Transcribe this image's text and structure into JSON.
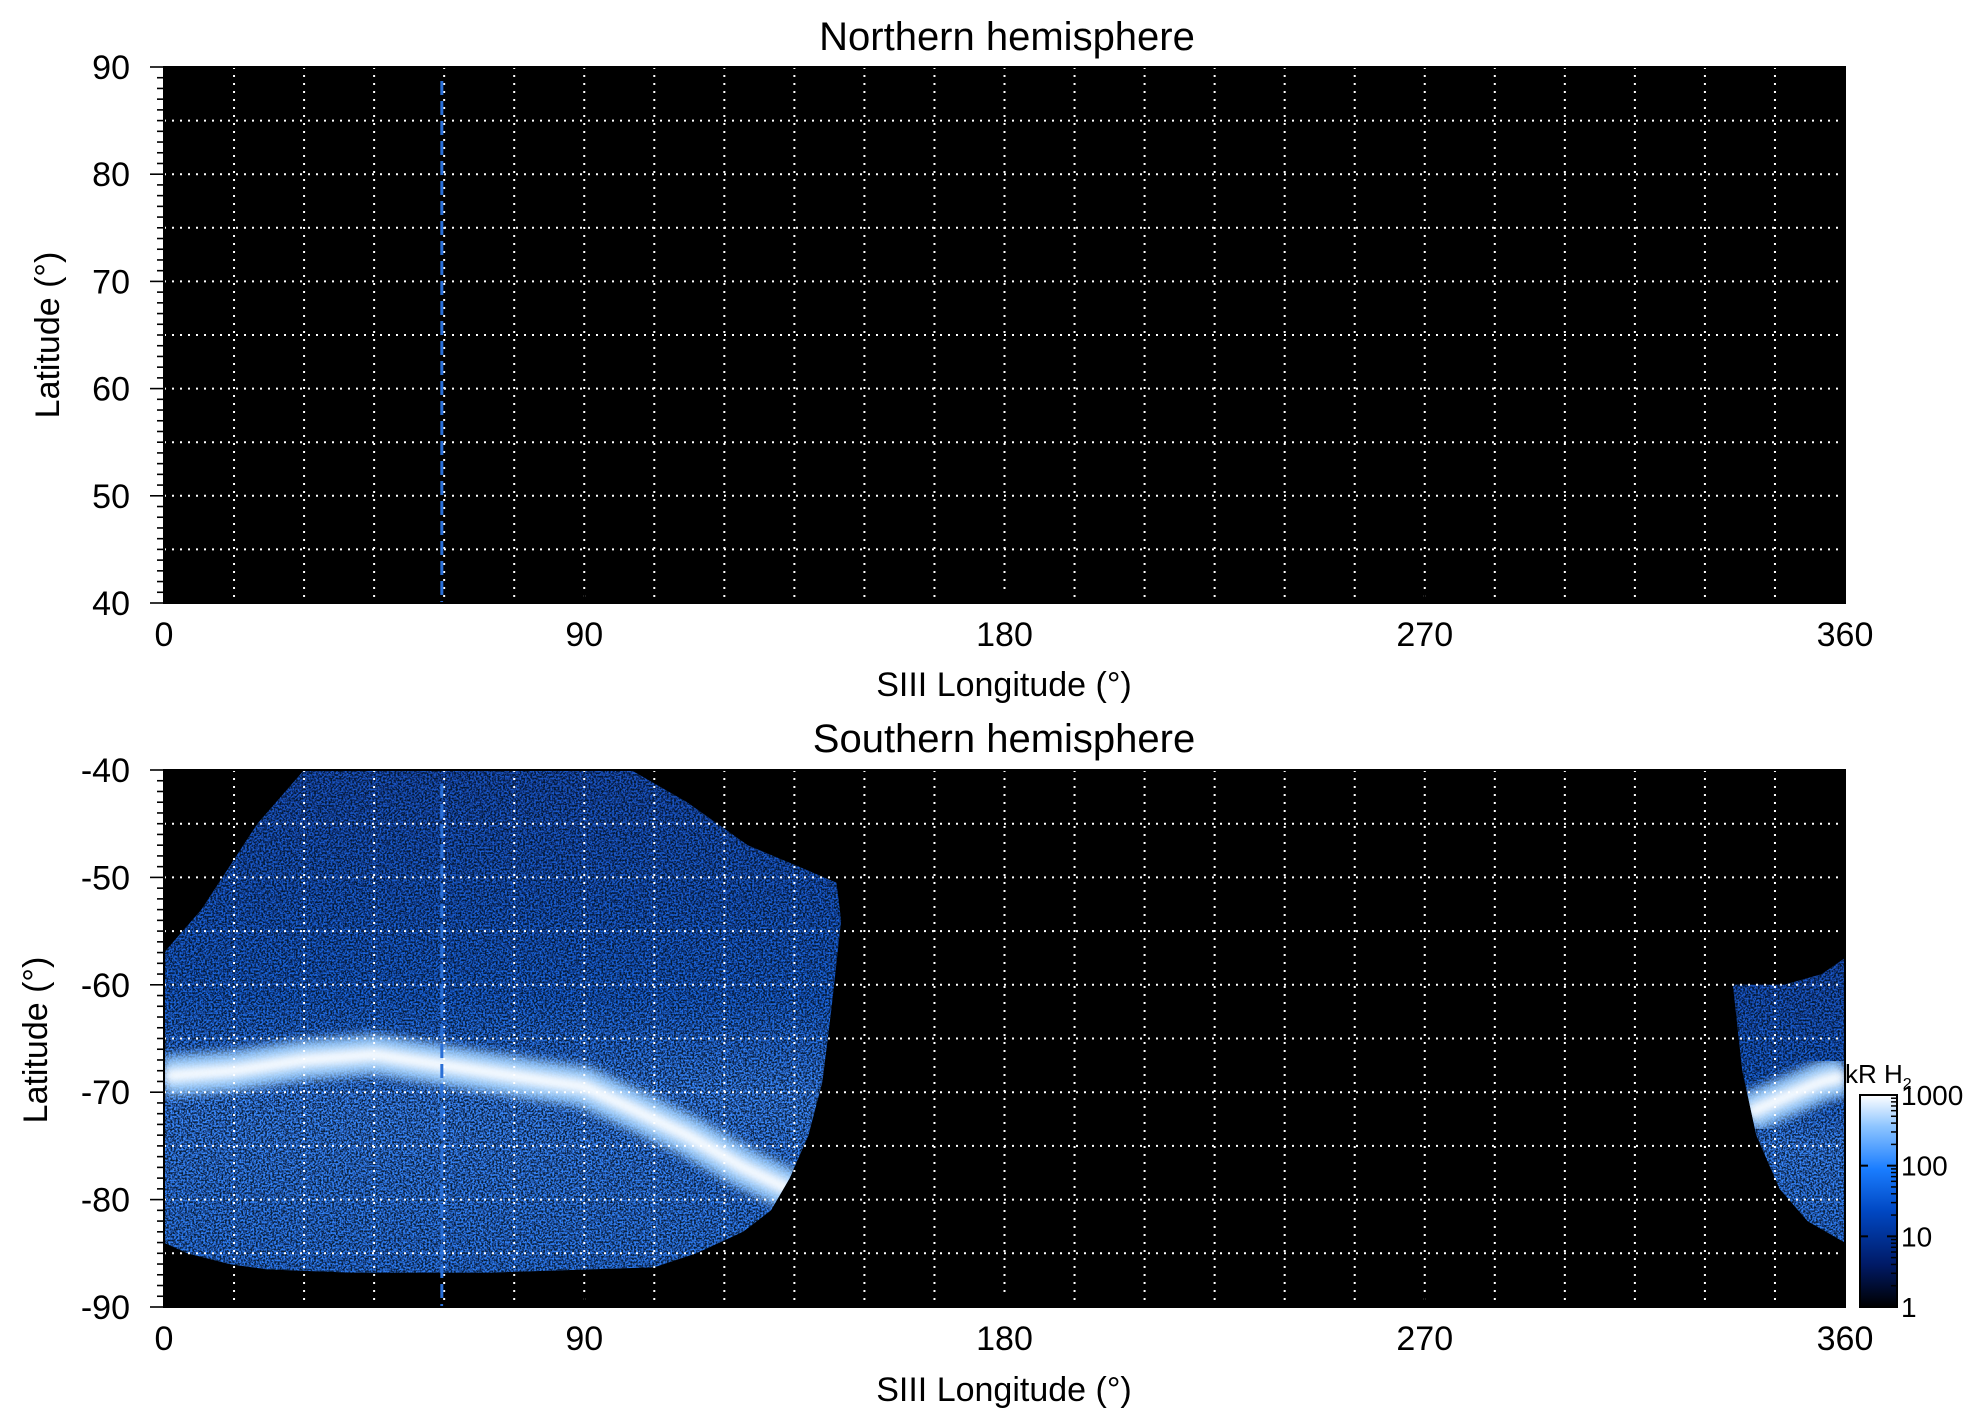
{
  "chart_data": [
    {
      "type": "heatmap",
      "title": "Northern hemisphere",
      "xlabel": "SIII Longitude (°)",
      "ylabel": "Latitude (°)",
      "xlim": [
        0,
        360
      ],
      "ylim": [
        40,
        90
      ],
      "xticks": [
        0,
        90,
        180,
        270,
        360
      ],
      "yticks": [
        40,
        50,
        60,
        70,
        80,
        90
      ],
      "grid": true,
      "grid_style": "dotted-white",
      "background": "#000000",
      "marker_line": {
        "longitude": 59.5,
        "color": "#2a6fd6",
        "style": "dashed"
      },
      "emission_regions": []
    },
    {
      "type": "heatmap",
      "title": "Southern hemisphere",
      "xlabel": "SIII Longitude (°)",
      "ylabel": "Latitude (°)",
      "xlim": [
        0,
        360
      ],
      "ylim": [
        -90,
        -40
      ],
      "xticks": [
        0,
        90,
        180,
        270,
        360
      ],
      "yticks": [
        -90,
        -80,
        -70,
        -60,
        -50,
        -40
      ],
      "grid": true,
      "grid_style": "dotted-white",
      "background": "#000000",
      "marker_line": {
        "longitude": 59.5,
        "color": "#2a6fd6",
        "style": "dashed"
      },
      "emission_regions": [
        {
          "outline": [
            [
              0,
              -57
            ],
            [
              8,
              -53
            ],
            [
              20,
              -45
            ],
            [
              30,
              -40
            ],
            [
              100,
              -40
            ],
            [
              112,
              -43
            ],
            [
              125,
              -47
            ],
            [
              136,
              -49
            ],
            [
              144,
              -50.5
            ],
            [
              145,
              -54
            ],
            [
              143,
              -62
            ],
            [
              141,
              -69
            ],
            [
              138,
              -74
            ],
            [
              134,
              -78
            ],
            [
              130,
              -81
            ],
            [
              124,
              -83
            ],
            [
              114,
              -85
            ],
            [
              105,
              -86.3
            ],
            [
              70,
              -86.8
            ],
            [
              40,
              -86.8
            ],
            [
              22,
              -86.5
            ],
            [
              14,
              -86
            ],
            [
              5,
              -85
            ],
            [
              0,
              -84
            ]
          ],
          "auroral_oval": [
            [
              0,
              -68.5
            ],
            [
              15,
              -68
            ],
            [
              30,
              -67
            ],
            [
              45,
              -66.5
            ],
            [
              60,
              -67.5
            ],
            [
              75,
              -68.5
            ],
            [
              90,
              -69.5
            ],
            [
              100,
              -71.5
            ],
            [
              112,
              -74
            ],
            [
              124,
              -77
            ],
            [
              136,
              -79.5
            ]
          ],
          "oval_intensity_kR": 1000,
          "typical_intensity_kR": 50
        },
        {
          "outline": [
            [
              336,
              -60
            ],
            [
              347,
              -60
            ],
            [
              355,
              -59
            ],
            [
              360,
              -57.5
            ],
            [
              360,
              -84
            ],
            [
              352,
              -82
            ],
            [
              346,
              -79
            ],
            [
              341,
              -74
            ],
            [
              338,
              -68
            ]
          ],
          "auroral_oval": [
            [
              339,
              -72
            ],
            [
              347,
              -70.5
            ],
            [
              355,
              -69
            ],
            [
              360,
              -68.5
            ]
          ],
          "oval_intensity_kR": 1000,
          "typical_intensity_kR": 50
        }
      ],
      "colorbar": {
        "label_main": "kR H",
        "label_sub": "2",
        "scale": "log",
        "range": [
          1,
          1000
        ],
        "tick_labels": [
          "1000",
          "100",
          "10",
          "1"
        ],
        "tick_values": [
          1000,
          100,
          10,
          1
        ],
        "colors": [
          "#000000",
          "#001a66",
          "#0047c2",
          "#1a7dff",
          "#8cc4ff",
          "#ffffff"
        ]
      }
    }
  ]
}
